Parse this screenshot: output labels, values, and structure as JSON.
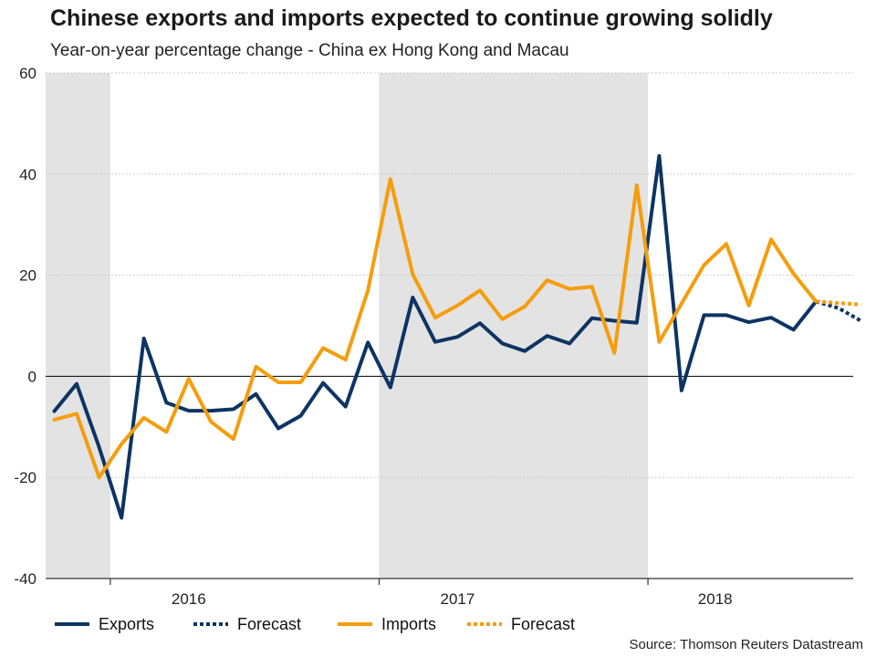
{
  "title": "Chinese exports and imports expected to continue growing solidly",
  "subtitle": "Year-on-year percentage change - China ex Hong Kong and Macau",
  "source": "Source: Thomson Reuters Datastream",
  "colors": {
    "exports": "#0d3463",
    "imports": "#f59d0c",
    "shade": "#e3e3e3",
    "grid": "#bdbdbd",
    "axis": "#333333"
  },
  "chart_data": {
    "type": "line",
    "title": "Chinese exports and imports expected to continue growing solidly",
    "subtitle": "Year-on-year percentage change - China ex Hong Kong and Macau",
    "xlabel": "",
    "ylabel": "",
    "ylim": [
      -40,
      60
    ],
    "yticks": [
      -40,
      -20,
      0,
      20,
      40,
      60
    ],
    "grid": true,
    "x_start": "2015-10",
    "x_categories": [
      "2015-10",
      "2015-11",
      "2015-12",
      "2016-01",
      "2016-02",
      "2016-03",
      "2016-04",
      "2016-05",
      "2016-06",
      "2016-07",
      "2016-08",
      "2016-09",
      "2016-10",
      "2016-11",
      "2016-12",
      "2017-01",
      "2017-02",
      "2017-03",
      "2017-04",
      "2017-05",
      "2017-06",
      "2017-07",
      "2017-08",
      "2017-09",
      "2017-10",
      "2017-11",
      "2017-12",
      "2018-01",
      "2018-02",
      "2018-03",
      "2018-04",
      "2018-05",
      "2018-06",
      "2018-07",
      "2018-08",
      "2018-09",
      "2018-10",
      "2018-11"
    ],
    "year_labels": [
      {
        "label": "2016",
        "center_month": 6
      },
      {
        "label": "2017",
        "center_month": 18
      },
      {
        "label": "2018",
        "center_month": 29.5
      }
    ],
    "year_boundaries": [
      2.5,
      14.5,
      26.5
    ],
    "shaded_ranges": [
      [
        -0.5,
        2.5
      ],
      [
        14.5,
        26.5
      ]
    ],
    "series": [
      {
        "name": "Exports",
        "style": "solid",
        "color_key": "exports",
        "start_index": 0,
        "values": [
          -6.9,
          -1.5,
          -14,
          -28,
          7.5,
          -5.2,
          -6.8,
          -6.8,
          -6.5,
          -3.5,
          -10.3,
          -7.8,
          -1.3,
          -6,
          6.7,
          -2.2,
          15.6,
          6.8,
          7.8,
          10.5,
          6.5,
          5,
          8,
          6.5,
          11.5,
          11,
          10.6,
          43.6,
          -2.8,
          12.1,
          12.1,
          10.7,
          11.6,
          9.2,
          14.8
        ]
      },
      {
        "name": "Forecast",
        "style": "dotted",
        "color_key": "exports",
        "start_index": 34,
        "values": [
          14.8,
          13.5,
          11
        ]
      },
      {
        "name": "Imports",
        "style": "solid",
        "color_key": "imports",
        "start_index": 0,
        "values": [
          -8.6,
          -7.4,
          -20,
          -13.4,
          -8.2,
          -11,
          -0.5,
          -9,
          -12.4,
          1.9,
          -1.2,
          -1.2,
          5.6,
          3.3,
          17,
          39,
          20.2,
          11.6,
          14,
          17,
          11.3,
          13.8,
          19,
          17.3,
          17.7,
          4.6,
          37.8,
          6.8,
          14.4,
          22,
          26.2,
          14,
          27.1,
          20.3,
          14.8
        ]
      },
      {
        "name": "Forecast",
        "style": "dotted",
        "color_key": "imports",
        "start_index": 34,
        "values": [
          14.8,
          14.5,
          14.2
        ]
      }
    ],
    "legend": [
      {
        "label": "Exports",
        "color_key": "exports",
        "style": "solid"
      },
      {
        "label": "Forecast",
        "color_key": "exports",
        "style": "dotted"
      },
      {
        "label": "Imports",
        "color_key": "imports",
        "style": "solid"
      },
      {
        "label": "Forecast",
        "color_key": "imports",
        "style": "dotted"
      }
    ]
  }
}
